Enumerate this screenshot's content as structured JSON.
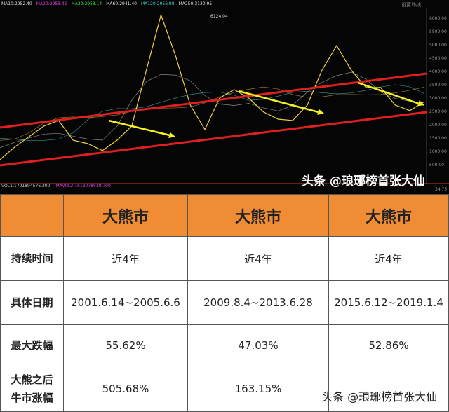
{
  "header": {
    "ma": [
      {
        "t": "MA10:2952.40",
        "c": "#e0e0e0"
      },
      {
        "t": "MA20:2953.46",
        "c": "#e040e0"
      },
      {
        "t": "MA30:2953.14",
        "c": "#40e040"
      },
      {
        "t": "MA60:2941.40",
        "c": "#e0e0e0"
      },
      {
        "t": "MA120:2956.98",
        "c": "#40d0d0"
      },
      {
        "t": "MA250:3130.95",
        "c": "#e0e0e0"
      }
    ],
    "settings": "设置均线"
  },
  "volume": {
    "vol": "VOL1:1791894576.200",
    "ma": "MAVOL2:1613078918.700"
  },
  "watermark": "头条 @琅琊榜首张大仙",
  "chart_data": {
    "type": "line",
    "title": "",
    "peak_label": "6124.04",
    "y_ticks": [
      "6000.00",
      "5500.00",
      "5000.00",
      "4500.00",
      "4000.00",
      "3500.00",
      "3000.00",
      "2500.00",
      "2000.00",
      "1500.00",
      "1000.00",
      "500.00"
    ],
    "ylim": [
      500,
      6000
    ],
    "corner_label": "34.75",
    "price": [
      690,
      1160,
      1560,
      1950,
      2160,
      1420,
      1290,
      1030,
      1420,
      1950,
      4050,
      6124,
      4580,
      2740,
      1820,
      3000,
      3320,
      3000,
      2480,
      2210,
      2160,
      2740,
      4050,
      4970,
      4050,
      3400,
      3400,
      2740,
      2530,
      2870
    ],
    "colors": {
      "price": "#f0d040",
      "channel": "#e02020",
      "arrow": "#f5f020"
    }
  },
  "table": {
    "headers": [
      "",
      "大熊市",
      "大熊市",
      "大熊市"
    ],
    "rows": [
      [
        "持续时间",
        "近4年",
        "近4年",
        "近4年"
      ],
      [
        "具体日期",
        "2001.6.14~2005.6.6",
        "2009.8.4~2013.6.28",
        "2015.6.12~2019.1.4"
      ],
      [
        "最大跌幅",
        "55.62%",
        "47.03%",
        "52.86%"
      ],
      [
        "大熊之后\n牛市涨幅",
        "505.68%",
        "163.15%",
        "?"
      ]
    ]
  }
}
